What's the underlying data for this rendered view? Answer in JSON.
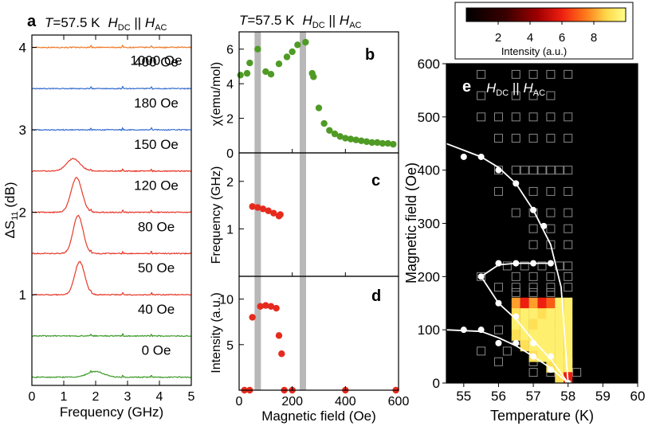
{
  "colors": {
    "orange": "#f07a2a",
    "blue": "#3a6fd0",
    "red": "#e8392b",
    "green": "#3f9a2a",
    "green_dot": "#4f9b25",
    "red_dot": "#e52b1e",
    "band": "#b8b8b8",
    "map_bg": "#000000",
    "map_open": "#8a8a8a"
  },
  "chart_data": [
    {
      "id": "a",
      "type": "line",
      "panel_letter": "a",
      "title": "T=57.5 K  HDC || HAC",
      "title_t": "T",
      "title_val": "=57.5 K",
      "title_h1": "H",
      "title_h1_sub": "DC",
      "title_par": " || ",
      "title_h2": "H",
      "title_h2_sub": "AC",
      "xlabel": "Frequency (GHz)",
      "ylabel": "ΔS11 (dB)",
      "ylabel_main": "ΔS",
      "ylabel_sub": "11",
      "ylabel_unit": " (dB)",
      "xlim": [
        0,
        5
      ],
      "ylim": [
        -0.1,
        4.15
      ],
      "xticks": [
        0,
        1,
        2,
        3,
        4,
        5
      ],
      "yticks": [
        1,
        2,
        3,
        4
      ],
      "series": [
        {
          "label": "1000 Oe",
          "offset": 4.0,
          "color": "orange",
          "peak_center": 0,
          "peak_amp": 0,
          "peak_width": 1
        },
        {
          "label": "400 Oe",
          "offset": 3.5,
          "color": "blue",
          "peak_center": 0,
          "peak_amp": 0,
          "peak_width": 1
        },
        {
          "label": "180 Oe",
          "offset": 3.0,
          "color": "blue",
          "peak_center": 0,
          "peak_amp": 0,
          "peak_width": 1
        },
        {
          "label": "150 Oe",
          "offset": 2.5,
          "color": "red",
          "peak_center": 1.3,
          "peak_amp": 0.15,
          "peak_width": 0.3
        },
        {
          "label": "120 Oe",
          "offset": 2.0,
          "color": "red",
          "peak_center": 1.4,
          "peak_amp": 0.42,
          "peak_width": 0.24
        },
        {
          "label": "80 Oe",
          "offset": 1.5,
          "color": "red",
          "peak_center": 1.45,
          "peak_amp": 0.46,
          "peak_width": 0.22
        },
        {
          "label": "50 Oe",
          "offset": 1.0,
          "color": "red",
          "peak_center": 1.5,
          "peak_amp": 0.4,
          "peak_width": 0.22
        },
        {
          "label": "40 Oe",
          "offset": 0.5,
          "color": "green",
          "peak_center": 0,
          "peak_amp": 0,
          "peak_width": 1
        },
        {
          "label": "0 Oe",
          "offset": 0.0,
          "color": "green",
          "peak_center": 2.0,
          "peak_amp": 0.07,
          "peak_width": 0.35
        }
      ]
    },
    {
      "id": "b",
      "type": "scatter",
      "panel_letter": "b",
      "title": "T=57.5 K  HDC || HAC",
      "ylabel": "χ(emu/mol)",
      "xlim": [
        0,
        600
      ],
      "ylim": [
        0,
        7
      ],
      "yticks": [
        0,
        2,
        4,
        6
      ],
      "bands": [
        70,
        240
      ],
      "x": [
        5,
        30,
        40,
        70,
        100,
        120,
        150,
        180,
        200,
        220,
        250,
        275,
        280,
        300,
        320,
        340,
        360,
        380,
        400,
        420,
        440,
        460,
        480,
        500,
        520,
        540,
        560,
        580
      ],
      "y": [
        4.5,
        4.6,
        5.2,
        6.0,
        4.7,
        4.55,
        5.15,
        5.55,
        5.85,
        6.25,
        6.4,
        4.6,
        4.4,
        2.6,
        1.7,
        1.3,
        1.1,
        0.95,
        0.85,
        0.8,
        0.75,
        0.7,
        0.65,
        0.6,
        0.6,
        0.55,
        0.55,
        0.5
      ]
    },
    {
      "id": "c",
      "type": "scatter",
      "panel_letter": "c",
      "ylabel": "Frequency (GHz)",
      "xlim": [
        0,
        600
      ],
      "ylim": [
        0,
        2.6
      ],
      "yticks": [
        0,
        1,
        2
      ],
      "bands": [
        70,
        240
      ],
      "x": [
        50,
        70,
        90,
        110,
        130,
        150,
        155
      ],
      "y": [
        1.47,
        1.45,
        1.42,
        1.38,
        1.33,
        1.27,
        1.3
      ]
    },
    {
      "id": "d",
      "type": "scatter",
      "panel_letter": "d",
      "ylabel": "Intensity (a.u.)",
      "xlabel": "Magnetic field (Oe)",
      "xlim": [
        0,
        600
      ],
      "ylim": [
        0,
        12.5
      ],
      "yticks": [
        0,
        5,
        10
      ],
      "xticks": [
        0,
        200,
        400,
        600
      ],
      "bands": [
        70,
        240
      ],
      "x": [
        20,
        40,
        50,
        80,
        100,
        120,
        140,
        150,
        160,
        170,
        200,
        400,
        590
      ],
      "y": [
        0,
        0,
        8.0,
        9.2,
        9.3,
        9.2,
        9.0,
        6.0,
        4.0,
        0,
        0,
        0,
        0
      ]
    },
    {
      "id": "e",
      "type": "heatmap",
      "panel_letter": "e",
      "title_h1": "H",
      "title_h1_sub": "DC",
      "title_par": " || ",
      "title_h2": "H",
      "title_h2_sub": "AC",
      "xlabel": "Temperature (K)",
      "ylabel": "Magnetic field (Oe)",
      "xlim": [
        54.5,
        60
      ],
      "ylim": [
        0,
        600
      ],
      "xticks": [
        55,
        56,
        57,
        58,
        59,
        60
      ],
      "yticks": [
        0,
        100,
        200,
        300,
        400,
        500,
        600
      ],
      "colorbar": {
        "label": "Intensity (a.u.)",
        "ticks": [
          2,
          4,
          6,
          8
        ],
        "range": [
          0,
          10
        ]
      },
      "open_cells": [
        [
          55.5,
          580
        ],
        [
          56.5,
          580
        ],
        [
          57,
          580
        ],
        [
          57.5,
          580
        ],
        [
          58,
          580
        ],
        [
          55.5,
          540
        ],
        [
          56.5,
          540
        ],
        [
          57,
          540
        ],
        [
          57.5,
          540
        ],
        [
          55.5,
          500
        ],
        [
          56,
          500
        ],
        [
          56.5,
          500
        ],
        [
          57,
          500
        ],
        [
          57.5,
          500
        ],
        [
          58,
          500
        ],
        [
          56,
          460
        ],
        [
          56.5,
          460
        ],
        [
          57,
          460
        ],
        [
          57.5,
          460
        ],
        [
          58,
          460
        ],
        [
          56,
          400
        ],
        [
          56.5,
          400
        ],
        [
          56.75,
          400
        ],
        [
          57,
          400
        ],
        [
          57.25,
          400
        ],
        [
          57.5,
          400
        ],
        [
          57.75,
          400
        ],
        [
          58,
          400
        ],
        [
          56,
          360
        ],
        [
          57,
          360
        ],
        [
          57.5,
          360
        ],
        [
          58,
          360
        ],
        [
          56.5,
          320
        ],
        [
          57,
          320
        ],
        [
          57.5,
          320
        ],
        [
          58,
          320
        ],
        [
          57,
          290
        ],
        [
          57.5,
          290
        ],
        [
          58,
          290
        ],
        [
          57,
          260
        ],
        [
          57.5,
          260
        ],
        [
          58,
          260
        ],
        [
          56.25,
          220
        ],
        [
          56.75,
          220
        ],
        [
          57.25,
          220
        ],
        [
          57.75,
          220
        ],
        [
          58,
          220
        ],
        [
          55.5,
          200
        ],
        [
          56.5,
          200
        ],
        [
          57,
          200
        ],
        [
          57.5,
          200
        ],
        [
          58,
          200
        ],
        [
          56,
          180
        ],
        [
          56.5,
          180
        ],
        [
          57,
          180
        ],
        [
          57.5,
          180
        ],
        [
          58,
          180
        ],
        [
          56.5,
          170
        ],
        [
          57,
          170
        ],
        [
          57.5,
          170
        ],
        [
          56,
          100
        ],
        [
          56.5,
          80
        ],
        [
          55.5,
          60
        ],
        [
          56,
          40
        ],
        [
          57,
          40
        ],
        [
          57.5,
          40
        ],
        [
          58,
          40
        ],
        [
          57,
          20
        ],
        [
          57.5,
          20
        ],
        [
          58.25,
          20
        ],
        [
          56.25,
          60
        ]
      ],
      "filled_cells": [
        {
          "t": 56.5,
          "h": 150,
          "v": 8.0
        },
        {
          "t": 56.75,
          "h": 150,
          "v": 6.0
        },
        {
          "t": 57.0,
          "h": 150,
          "v": 8.0
        },
        {
          "t": 57.25,
          "h": 150,
          "v": 6.0
        },
        {
          "t": 57.5,
          "h": 150,
          "v": 7.0
        },
        {
          "t": 57.75,
          "h": 150,
          "v": 9.5
        },
        {
          "t": 58.0,
          "h": 150,
          "v": 9.5
        },
        {
          "t": 56.5,
          "h": 130,
          "v": 9.0
        },
        {
          "t": 56.75,
          "h": 130,
          "v": 9.5
        },
        {
          "t": 57.0,
          "h": 130,
          "v": 9.5
        },
        {
          "t": 57.25,
          "h": 130,
          "v": 9.0
        },
        {
          "t": 57.5,
          "h": 130,
          "v": 9.5
        },
        {
          "t": 57.75,
          "h": 130,
          "v": 9.5
        },
        {
          "t": 58.0,
          "h": 130,
          "v": 9.5
        },
        {
          "t": 56.5,
          "h": 110,
          "v": 9.5
        },
        {
          "t": 56.75,
          "h": 110,
          "v": 9.5
        },
        {
          "t": 57.0,
          "h": 110,
          "v": 9.0
        },
        {
          "t": 57.25,
          "h": 110,
          "v": 9.5
        },
        {
          "t": 57.5,
          "h": 110,
          "v": 9.5
        },
        {
          "t": 57.75,
          "h": 110,
          "v": 9.5
        },
        {
          "t": 58.0,
          "h": 110,
          "v": 9.5
        },
        {
          "t": 56.5,
          "h": 90,
          "v": 9.0
        },
        {
          "t": 56.75,
          "h": 90,
          "v": 9.5
        },
        {
          "t": 57.0,
          "h": 90,
          "v": 9.5
        },
        {
          "t": 57.25,
          "h": 90,
          "v": 9.5
        },
        {
          "t": 57.5,
          "h": 90,
          "v": 9.5
        },
        {
          "t": 57.75,
          "h": 90,
          "v": 9.5
        },
        {
          "t": 58.0,
          "h": 90,
          "v": 9.5
        },
        {
          "t": 56.75,
          "h": 70,
          "v": 9.0
        },
        {
          "t": 57.0,
          "h": 70,
          "v": 9.5
        },
        {
          "t": 57.25,
          "h": 70,
          "v": 9.5
        },
        {
          "t": 57.5,
          "h": 70,
          "v": 9.5
        },
        {
          "t": 57.75,
          "h": 70,
          "v": 9.5
        },
        {
          "t": 58.0,
          "h": 70,
          "v": 9.5
        },
        {
          "t": 57.0,
          "h": 50,
          "v": 9.0
        },
        {
          "t": 57.25,
          "h": 50,
          "v": 9.5
        },
        {
          "t": 57.5,
          "h": 50,
          "v": 9.5
        },
        {
          "t": 57.75,
          "h": 50,
          "v": 9.5
        },
        {
          "t": 58.0,
          "h": 50,
          "v": 9.5
        },
        {
          "t": 57.5,
          "h": 30,
          "v": 9.0
        },
        {
          "t": 57.75,
          "h": 30,
          "v": 9.5
        },
        {
          "t": 58.0,
          "h": 30,
          "v": 9.5
        },
        {
          "t": 57.75,
          "h": 10,
          "v": 9.0
        },
        {
          "t": 58.0,
          "h": 10,
          "v": 6.0
        }
      ],
      "white_points": [
        {
          "t": 55.0,
          "h": 425
        },
        {
          "t": 55.5,
          "h": 425
        },
        {
          "t": 56.0,
          "h": 400
        },
        {
          "t": 56.5,
          "h": 375
        },
        {
          "t": 57.0,
          "h": 325
        },
        {
          "t": 57.3,
          "h": 295
        },
        {
          "t": 55.5,
          "h": 200
        },
        {
          "t": 56.0,
          "h": 225
        },
        {
          "t": 56.5,
          "h": 225
        },
        {
          "t": 57.0,
          "h": 225
        },
        {
          "t": 57.5,
          "h": 225
        },
        {
          "t": 56.0,
          "h": 150
        },
        {
          "t": 56.5,
          "h": 125
        },
        {
          "t": 57.0,
          "h": 75
        },
        {
          "t": 57.5,
          "h": 50
        },
        {
          "t": 55.0,
          "h": 100
        },
        {
          "t": 55.5,
          "h": 100
        },
        {
          "t": 56.0,
          "h": 75
        },
        {
          "t": 56.5,
          "h": 75
        },
        {
          "t": 57.0,
          "h": 50
        },
        {
          "t": 57.5,
          "h": 25
        },
        {
          "t": 58.0,
          "h": 0
        }
      ],
      "boundary_lines": [
        [
          [
            54.5,
            450
          ],
          [
            55.5,
            425
          ],
          [
            56.0,
            405
          ],
          [
            56.5,
            375
          ],
          [
            57.0,
            325
          ],
          [
            57.5,
            260
          ],
          [
            57.8,
            180
          ],
          [
            58.0,
            0
          ]
        ],
        [
          [
            55.5,
            200
          ],
          [
            56.0,
            222
          ],
          [
            56.5,
            225
          ],
          [
            57.0,
            225
          ],
          [
            57.5,
            225
          ]
        ],
        [
          [
            55.5,
            200
          ],
          [
            56.0,
            150
          ],
          [
            56.5,
            120
          ],
          [
            57.0,
            80
          ],
          [
            57.5,
            45
          ],
          [
            58.0,
            0
          ]
        ],
        [
          [
            54.5,
            100
          ],
          [
            55.5,
            97
          ],
          [
            56.0,
            85
          ],
          [
            56.5,
            70
          ],
          [
            57.0,
            50
          ],
          [
            57.5,
            28
          ],
          [
            58.0,
            0
          ]
        ]
      ]
    }
  ]
}
